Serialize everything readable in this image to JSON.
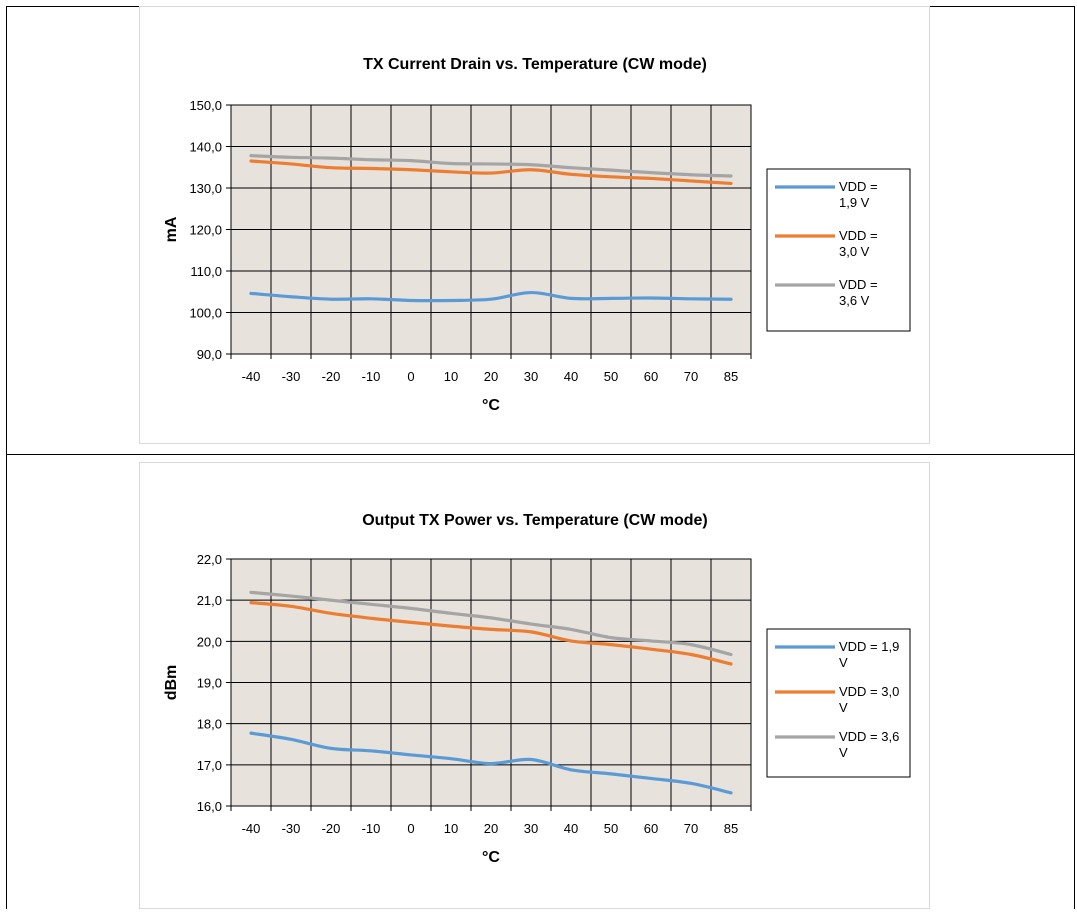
{
  "chart_data": [
    {
      "type": "line",
      "title": "TX Current Drain vs. Temperature (CW mode)",
      "xlabel": "°C",
      "ylabel": "mA",
      "categories": [
        "-40",
        "-30",
        "-20",
        "-10",
        "0",
        "10",
        "20",
        "30",
        "40",
        "50",
        "60",
        "70",
        "85"
      ],
      "ylim": [
        90,
        150
      ],
      "yticks": [
        "90,0",
        "100,0",
        "110,0",
        "120,0",
        "130,0",
        "140,0",
        "150,0"
      ],
      "grid": true,
      "legend_position": "right",
      "series": [
        {
          "name": "VDD =\n1,9 V",
          "color": "#5b9bd5",
          "values": [
            104.6,
            103.8,
            103.2,
            103.3,
            102.9,
            102.9,
            103.2,
            104.8,
            103.4,
            103.4,
            103.5,
            103.3,
            103.2
          ]
        },
        {
          "name": "VDD =\n3,0 V",
          "color": "#ed7d31",
          "values": [
            136.5,
            135.8,
            134.9,
            134.7,
            134.4,
            133.9,
            133.6,
            134.4,
            133.3,
            132.7,
            132.3,
            131.7,
            131.1
          ]
        },
        {
          "name": "VDD =\n3,6 V",
          "color": "#a5a5a5",
          "values": [
            137.8,
            137.4,
            137.2,
            136.8,
            136.6,
            135.9,
            135.8,
            135.6,
            134.9,
            134.3,
            133.7,
            133.2,
            132.9
          ]
        }
      ]
    },
    {
      "type": "line",
      "title": "Output TX Power vs. Temperature (CW mode)",
      "xlabel": "°C",
      "ylabel": "dBm",
      "categories": [
        "-40",
        "-30",
        "-20",
        "-10",
        "0",
        "10",
        "20",
        "30",
        "40",
        "50",
        "60",
        "70",
        "85"
      ],
      "ylim": [
        16,
        22
      ],
      "yticks": [
        "16,0",
        "17,0",
        "18,0",
        "19,0",
        "20,0",
        "21,0",
        "22,0"
      ],
      "grid": true,
      "legend_position": "right",
      "series": [
        {
          "name": "VDD = 1,9\nV",
          "color": "#5b9bd5",
          "values": [
            17.77,
            17.62,
            17.4,
            17.34,
            17.24,
            17.15,
            17.03,
            17.13,
            16.88,
            16.78,
            16.67,
            16.55,
            16.32
          ]
        },
        {
          "name": "VDD = 3,0\nV",
          "color": "#ed7d31",
          "values": [
            20.94,
            20.85,
            20.68,
            20.56,
            20.46,
            20.37,
            20.29,
            20.23,
            20.01,
            19.92,
            19.81,
            19.68,
            19.45
          ]
        },
        {
          "name": "VDD = 3,6\nV",
          "color": "#a5a5a5",
          "values": [
            21.19,
            21.1,
            21.0,
            20.9,
            20.8,
            20.68,
            20.57,
            20.42,
            20.29,
            20.09,
            20.01,
            19.92,
            19.68
          ]
        }
      ]
    }
  ]
}
